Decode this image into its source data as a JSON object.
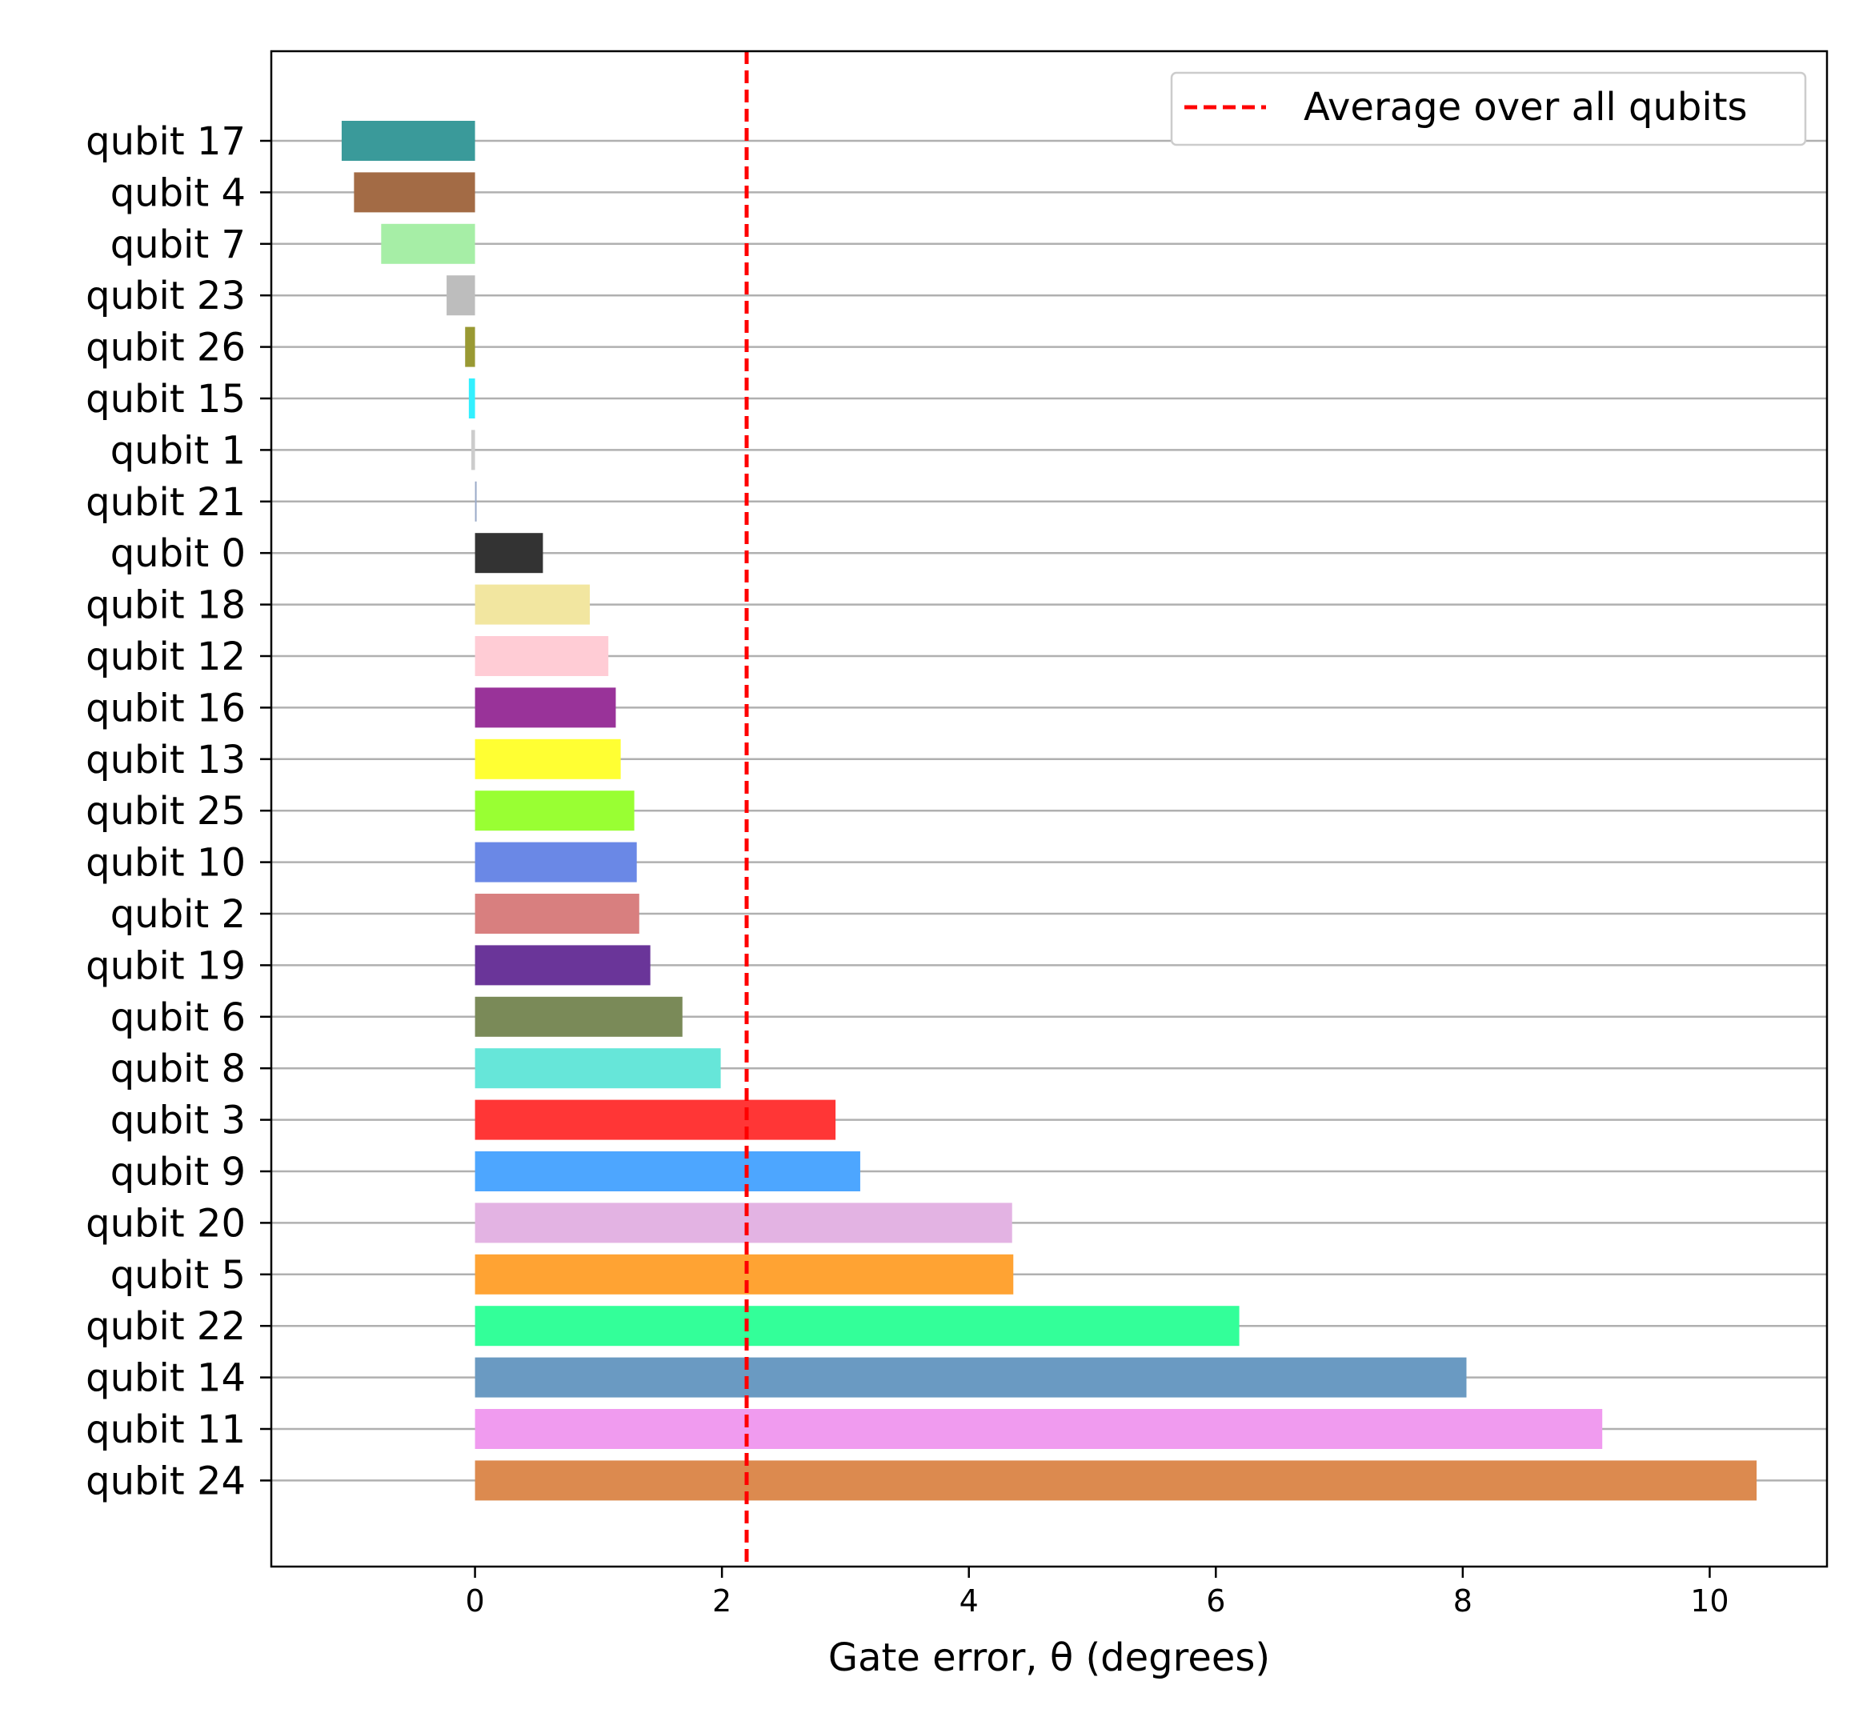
{
  "chart_data": {
    "type": "bar",
    "orientation": "horizontal",
    "title": "",
    "xlabel": "Gate error, θ (degrees)",
    "ylabel": "",
    "xlim": [
      -1.65,
      10.95
    ],
    "xticks": [
      0,
      2,
      4,
      6,
      8,
      10
    ],
    "grid": "horizontal lines at each category",
    "legend_position": "top-right",
    "average": {
      "label": "Average over all qubits",
      "value": 2.2,
      "color": "#ff0000",
      "style": "dashed"
    },
    "categories": [
      "qubit 17",
      "qubit 4",
      "qubit 7",
      "qubit 23",
      "qubit 26",
      "qubit 15",
      "qubit 1",
      "qubit 21",
      "qubit 0",
      "qubit 18",
      "qubit 12",
      "qubit 16",
      "qubit 13",
      "qubit 25",
      "qubit 10",
      "qubit 2",
      "qubit 19",
      "qubit 6",
      "qubit 8",
      "qubit 3",
      "qubit 9",
      "qubit 20",
      "qubit 5",
      "qubit 22",
      "qubit 14",
      "qubit 11",
      "qubit 24"
    ],
    "values": [
      -1.08,
      -0.98,
      -0.76,
      -0.23,
      -0.08,
      -0.05,
      -0.03,
      0.01,
      0.55,
      0.93,
      1.08,
      1.14,
      1.18,
      1.29,
      1.31,
      1.33,
      1.42,
      1.68,
      1.99,
      2.92,
      3.12,
      4.35,
      4.36,
      6.19,
      8.03,
      9.13,
      10.38
    ],
    "colors": [
      "#3a9a9a",
      "#a36b45",
      "#a6eea6",
      "#bdbdbd",
      "#999933",
      "#33f0ff",
      "#cccccc",
      "#9aaac8",
      "#333333",
      "#f2e6a0",
      "#ffccd5",
      "#993399",
      "#ffff33",
      "#99ff33",
      "#6a88e6",
      "#d87f7f",
      "#6a3599",
      "#7a8a58",
      "#66e6d9",
      "#ff3636",
      "#4da6ff",
      "#e3b3e3",
      "#ffa333",
      "#33ff99",
      "#6a9ac2",
      "#f09bef",
      "#dc8a4f"
    ]
  }
}
